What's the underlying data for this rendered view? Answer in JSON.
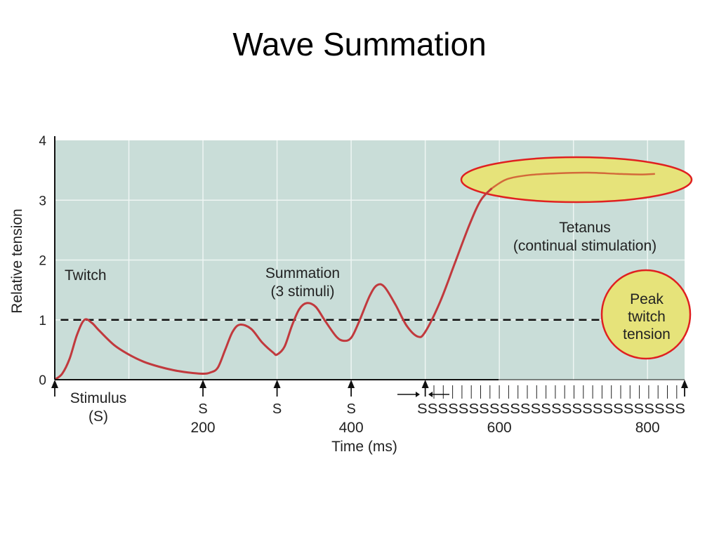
{
  "slide": {
    "title": "Wave Summation"
  },
  "colors": {
    "plot_bg": "#c9ddd8",
    "grid": "#eef5f3",
    "curve": "#c1393d",
    "curve_tetanus": "#d36a3a",
    "highlight_fill": "#e6e37a",
    "highlight_stroke": "#e02020",
    "dash": "#111111"
  },
  "chart_data": {
    "type": "line",
    "title": "",
    "xlabel": "Time (ms)",
    "ylabel": "Relative tension",
    "xlim": [
      0,
      850
    ],
    "ylim": [
      0,
      4
    ],
    "x_ticks": [
      200,
      400,
      600,
      800
    ],
    "y_ticks": [
      0,
      1,
      2,
      3,
      4
    ],
    "grid": true,
    "series": [
      {
        "values": [
          [
            0,
            0
          ],
          [
            10,
            0.1
          ],
          [
            20,
            0.35
          ],
          [
            30,
            0.75
          ],
          [
            40,
            1.0
          ],
          [
            50,
            0.95
          ],
          [
            60,
            0.82
          ],
          [
            80,
            0.58
          ],
          [
            100,
            0.42
          ],
          [
            120,
            0.3
          ],
          [
            140,
            0.22
          ],
          [
            160,
            0.16
          ],
          [
            180,
            0.12
          ],
          [
            200,
            0.1
          ],
          [
            210,
            0.12
          ],
          [
            220,
            0.2
          ],
          [
            230,
            0.5
          ],
          [
            240,
            0.8
          ],
          [
            250,
            0.92
          ],
          [
            265,
            0.85
          ],
          [
            280,
            0.62
          ],
          [
            295,
            0.45
          ],
          [
            300,
            0.42
          ],
          [
            310,
            0.55
          ],
          [
            320,
            0.9
          ],
          [
            330,
            1.18
          ],
          [
            340,
            1.28
          ],
          [
            352,
            1.22
          ],
          [
            365,
            0.98
          ],
          [
            380,
            0.72
          ],
          [
            390,
            0.65
          ],
          [
            400,
            0.7
          ],
          [
            410,
            0.95
          ],
          [
            425,
            1.4
          ],
          [
            435,
            1.58
          ],
          [
            445,
            1.55
          ],
          [
            460,
            1.25
          ],
          [
            475,
            0.9
          ],
          [
            490,
            0.72
          ],
          [
            500,
            0.8
          ],
          [
            520,
            1.3
          ],
          [
            540,
            1.95
          ],
          [
            560,
            2.6
          ],
          [
            575,
            3.0
          ],
          [
            590,
            3.2
          ],
          [
            610,
            3.35
          ],
          [
            640,
            3.42
          ],
          [
            680,
            3.45
          ],
          [
            720,
            3.46
          ],
          [
            760,
            3.44
          ],
          [
            790,
            3.43
          ],
          [
            810,
            3.44
          ]
        ]
      }
    ],
    "reference_line": {
      "y": 1.0,
      "style": "dashed"
    },
    "annotations": {
      "twitch": "Twitch",
      "summation_line1": "Summation",
      "summation_line2": "(3 stimuli)",
      "tetanus_line1": "Tetanus",
      "tetanus_line2": "(continual stimulation)",
      "peak_line1": "Peak",
      "peak_line2": "twitch",
      "peak_line3": "tension",
      "stimulus_line1": "Stimulus",
      "stimulus_line2": "(S)",
      "s_label": "S",
      "s_run": "SSSSSSSSSSSSSSSSSSSSSSSSSS"
    },
    "stimuli_x": [
      0,
      200,
      300,
      400,
      500,
      850
    ],
    "tetanus_stim_start": 500,
    "tetanus_stim_end": 850
  }
}
